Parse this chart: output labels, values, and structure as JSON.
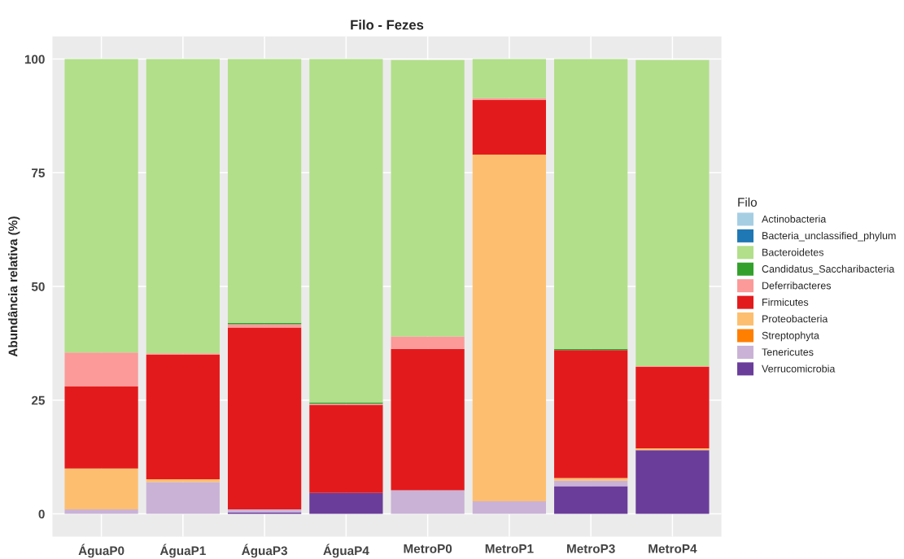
{
  "chart_data": {
    "type": "bar",
    "title": "Filo - Fezes",
    "ylabel": "Abundância relativa (%)",
    "legend_title": "Filo",
    "categories": [
      "ÁguaP0",
      "ÁguaP1",
      "ÁguaP3",
      "ÁguaP4",
      "MetroP0",
      "MetroP1",
      "MetroP3",
      "MetroP4"
    ],
    "stacked": true,
    "ylim": [
      -5,
      105
    ],
    "yticks": [
      0,
      25,
      50,
      75,
      100
    ],
    "grid": true,
    "legend": "right",
    "series": [
      {
        "name": "Verrucomicrobia",
        "color": "#6a3d9a",
        "values": [
          0,
          0,
          0.3,
          4.6,
          0,
          0,
          6.1,
          14
        ]
      },
      {
        "name": "Tenericutes",
        "color": "#cab2d6",
        "values": [
          1,
          7,
          0.7,
          0,
          5.2,
          2.8,
          1.2,
          null
        ]
      },
      {
        "name": "Streptophyta",
        "color": "#ff7f00",
        "values": [
          0,
          0,
          0,
          0,
          0,
          0,
          0,
          0
        ]
      },
      {
        "name": "Proteobacteria",
        "color": "#fdbf6f",
        "values": [
          9,
          0.6,
          0,
          0,
          null,
          76.2,
          0.6,
          0.4
        ]
      },
      {
        "name": "Firmicutes",
        "color": "#e31a1c",
        "values": [
          18,
          27.4,
          40,
          19.4,
          31.1,
          12,
          28.1,
          17.9
        ]
      },
      {
        "name": "Deferribacteres",
        "color": "#fb9a99",
        "values": [
          7.5,
          0.3,
          0.7,
          0.2,
          2.7,
          0.4,
          0,
          0.2
        ]
      },
      {
        "name": "Candidatus_Saccharibacteria",
        "color": "#33a02c",
        "values": [
          0,
          0,
          0.3,
          0.3,
          0,
          0,
          0.3,
          0
        ]
      },
      {
        "name": "Bacteroidetes",
        "color": "#b2df8a",
        "values": [
          64.5,
          64.7,
          58,
          75.5,
          60.8,
          8.6,
          63.7,
          67.3
        ]
      },
      {
        "name": "Bacteria_unclassified_phylum",
        "color": "#1f78b4",
        "values": [
          0,
          0,
          0,
          0,
          0,
          0,
          0,
          0
        ]
      },
      {
        "name": "Actinobacteria",
        "color": "#a6cee3",
        "values": [
          0,
          0,
          0,
          0,
          0,
          0,
          0,
          0
        ]
      }
    ]
  }
}
